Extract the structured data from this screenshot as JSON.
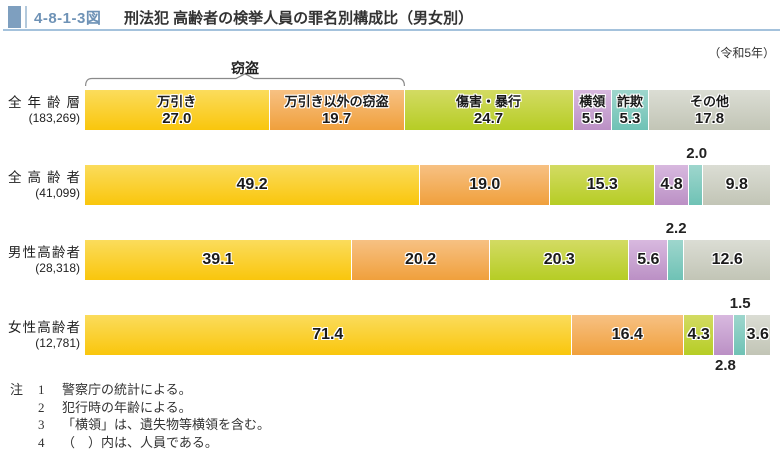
{
  "header": {
    "figure_no": "4-8-1-3図",
    "title": "刑法犯 高齢者の検挙人員の罪名別構成比（男女別）",
    "year_note": "（令和5年）"
  },
  "chart_data": {
    "type": "bar",
    "orientation": "horizontal-stacked",
    "unit": "%",
    "xlim": [
      0,
      100
    ],
    "bracket": {
      "label": "窃盗",
      "covers_series": [
        0,
        1
      ]
    },
    "series_names": [
      "万引き",
      "万引き以外の窃盗",
      "傷害・暴行",
      "横領",
      "詐欺",
      "その他"
    ],
    "series_colors": [
      {
        "top": "#fbdc5c",
        "bottom": "#f9c60c"
      },
      {
        "top": "#f7c183",
        "bottom": "#f0a03c"
      },
      {
        "top": "#d3db63",
        "bottom": "#b6cd25"
      },
      {
        "top": "#d8b9df",
        "bottom": "#bb90c5"
      },
      {
        "top": "#9ed6cd",
        "bottom": "#6fc2b5"
      },
      {
        "top": "#dbddd4",
        "bottom": "#c2c5b6"
      }
    ],
    "rows": [
      {
        "label": "全年齢層",
        "count": "(183,269)",
        "values": [
          27.0,
          19.7,
          24.7,
          5.5,
          5.3,
          17.8
        ],
        "placements": [
          "in",
          "in",
          "in",
          "in",
          "in",
          "in"
        ],
        "show_names": true
      },
      {
        "label": "全高齢者",
        "count": "(41,099)",
        "values": [
          49.2,
          19.0,
          15.3,
          4.8,
          2.0,
          9.8
        ],
        "placements": [
          "in",
          "in",
          "in",
          "in",
          "above",
          "in"
        ],
        "show_names": false
      },
      {
        "label": "男性高齢者",
        "count": "(28,318)",
        "values": [
          39.1,
          20.2,
          20.3,
          5.6,
          2.2,
          12.6
        ],
        "placements": [
          "in",
          "in",
          "in",
          "in",
          "above",
          "in"
        ],
        "show_names": false
      },
      {
        "label": "女性高齢者",
        "count": "(12,781)",
        "values": [
          71.4,
          16.4,
          4.3,
          2.8,
          1.5,
          3.6
        ],
        "placements": [
          "in",
          "in",
          "in",
          "below",
          "above",
          "in"
        ],
        "show_names": false
      }
    ]
  },
  "notes": {
    "prefix": "注",
    "items": [
      {
        "num": "1",
        "text": "警察庁の統計による。"
      },
      {
        "num": "2",
        "text": "犯行時の年齢による。"
      },
      {
        "num": "3",
        "text": "「横領」は、遺失物等横領を含む。"
      },
      {
        "num": "4",
        "text": "（　）内は、人員である。"
      }
    ]
  }
}
